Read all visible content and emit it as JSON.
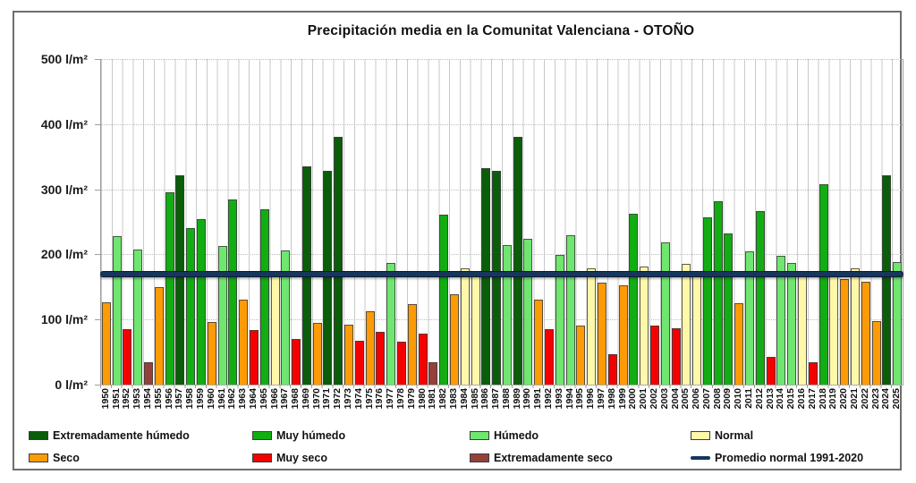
{
  "title": "Precipitación media en la Comunitat Valenciana - OTOÑO",
  "y_axis": {
    "tick_labels": [
      "500 l/m²",
      "400 l/m²",
      "300 l/m²",
      "200 l/m²",
      "100 l/m²",
      "0 l/m²"
    ]
  },
  "chart_data": {
    "type": "bar",
    "title": "Precipitación media en la Comunitat Valenciana - OTOÑO",
    "xlabel": "",
    "ylabel": "l/m²",
    "ylim": [
      0,
      500
    ],
    "grid": true,
    "categories": [
      1950,
      1951,
      1952,
      1953,
      1954,
      1955,
      1956,
      1957,
      1958,
      1959,
      1960,
      1961,
      1962,
      1963,
      1964,
      1965,
      1966,
      1967,
      1968,
      1969,
      1970,
      1971,
      1972,
      1973,
      1974,
      1975,
      1976,
      1977,
      1978,
      1979,
      1980,
      1981,
      1982,
      1983,
      1984,
      1985,
      1986,
      1987,
      1988,
      1989,
      1990,
      1991,
      1992,
      1993,
      1994,
      1995,
      1996,
      1997,
      1998,
      1999,
      2000,
      2001,
      2002,
      2003,
      2004,
      2005,
      2006,
      2007,
      2008,
      2009,
      2010,
      2011,
      2012,
      2013,
      2014,
      2015,
      2016,
      2017,
      2018,
      2019,
      2020,
      2021,
      2022,
      2023,
      2024,
      2025
    ],
    "values": [
      127,
      228,
      85,
      207,
      34,
      150,
      295,
      322,
      241,
      254,
      96,
      213,
      284,
      130,
      84,
      269,
      172,
      206,
      70,
      335,
      95,
      328,
      380,
      92,
      68,
      112,
      81,
      187,
      66,
      124,
      78,
      34,
      261,
      139,
      178,
      172,
      332,
      328,
      214,
      380,
      224,
      130,
      85,
      199,
      230,
      91,
      179,
      156,
      47,
      152,
      262,
      182,
      90,
      219,
      87,
      186,
      172,
      257,
      282,
      232,
      125,
      205,
      266,
      43,
      198,
      187,
      166,
      35,
      308,
      168,
      162,
      179,
      158,
      97,
      322,
      188
    ],
    "classes": [
      "seco",
      "humedo",
      "muy_seco",
      "humedo",
      "extremadamente_seco",
      "seco",
      "muy_humedo",
      "extremadamente_humedo",
      "muy_humedo",
      "muy_humedo",
      "seco",
      "humedo",
      "muy_humedo",
      "seco",
      "muy_seco",
      "muy_humedo",
      "normal",
      "humedo",
      "muy_seco",
      "extremadamente_humedo",
      "seco",
      "extremadamente_humedo",
      "extremadamente_humedo",
      "seco",
      "muy_seco",
      "seco",
      "muy_seco",
      "humedo",
      "muy_seco",
      "seco",
      "muy_seco",
      "extremadamente_seco",
      "muy_humedo",
      "seco",
      "normal",
      "normal",
      "extremadamente_humedo",
      "extremadamente_humedo",
      "humedo",
      "extremadamente_humedo",
      "humedo",
      "seco",
      "muy_seco",
      "humedo",
      "humedo",
      "seco",
      "normal",
      "seco",
      "muy_seco",
      "seco",
      "muy_humedo",
      "normal",
      "muy_seco",
      "humedo",
      "muy_seco",
      "normal",
      "normal",
      "muy_humedo",
      "muy_humedo",
      "muy_humedo",
      "seco",
      "humedo",
      "muy_humedo",
      "muy_seco",
      "humedo",
      "humedo",
      "normal",
      "muy_seco",
      "muy_humedo",
      "normal",
      "seco",
      "normal",
      "seco",
      "seco",
      "extremadamente_humedo",
      "humedo"
    ],
    "class_colors": {
      "extremadamente_humedo": "#0a5e0a",
      "muy_humedo": "#12ad12",
      "humedo": "#6fe66f",
      "normal": "#fff8a9",
      "seco": "#fc9b06",
      "muy_seco": "#f40000",
      "extremadamente_seco": "#96403a"
    },
    "reference_line": {
      "label": "Promedio normal 1991-2020",
      "value": 171,
      "color": "#16365c"
    }
  },
  "legend": {
    "items": [
      {
        "key": "extremadamente_humedo",
        "label": "Extremadamente húmedo",
        "type": "box"
      },
      {
        "key": "muy_humedo",
        "label": "Muy húmedo",
        "type": "box"
      },
      {
        "key": "humedo",
        "label": "Húmedo",
        "type": "box"
      },
      {
        "key": "normal",
        "label": "Normal",
        "type": "box"
      },
      {
        "key": "seco",
        "label": "Seco",
        "type": "box"
      },
      {
        "key": "muy_seco",
        "label": "Muy seco",
        "type": "box"
      },
      {
        "key": "extremadamente_seco",
        "label": "Extremadamente seco",
        "type": "box"
      },
      {
        "key": "promedio",
        "label": "Promedio normal 1991-2020",
        "type": "line"
      }
    ]
  }
}
